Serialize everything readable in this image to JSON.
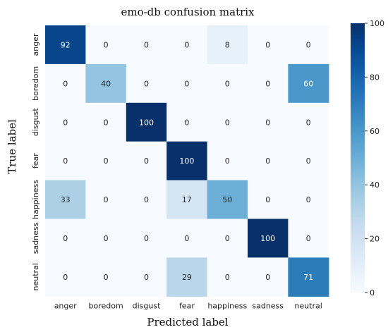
{
  "chart_data": {
    "type": "heatmap",
    "title": "emo-db confusion matrix",
    "xlabel": "Predicted label",
    "ylabel": "True label",
    "x_categories": [
      "anger",
      "boredom",
      "disgust",
      "fear",
      "happiness",
      "sadness",
      "neutral"
    ],
    "y_categories": [
      "anger",
      "boredom",
      "disgust",
      "fear",
      "happiness",
      "sadness",
      "neutral"
    ],
    "values": [
      [
        92,
        0,
        0,
        0,
        8,
        0,
        0
      ],
      [
        0,
        40,
        0,
        0,
        0,
        0,
        60
      ],
      [
        0,
        0,
        100,
        0,
        0,
        0,
        0
      ],
      [
        0,
        0,
        0,
        100,
        0,
        0,
        0
      ],
      [
        33,
        0,
        0,
        17,
        50,
        0,
        0
      ],
      [
        0,
        0,
        0,
        0,
        0,
        100,
        0
      ],
      [
        0,
        0,
        0,
        29,
        0,
        0,
        71
      ]
    ],
    "colorscale": "Blues",
    "vmin": 0,
    "vmax": 100,
    "colorbar_ticks": [
      0,
      20,
      40,
      60,
      80,
      100
    ]
  }
}
